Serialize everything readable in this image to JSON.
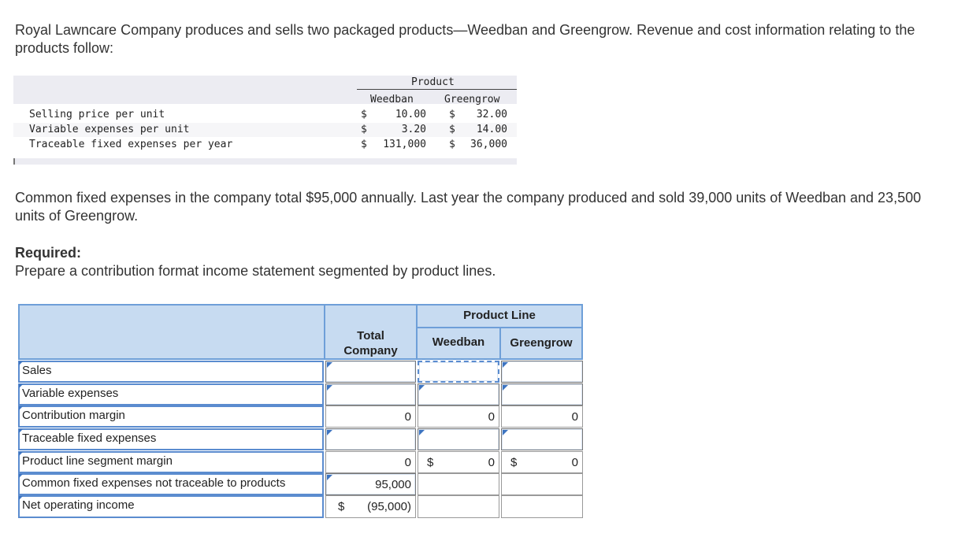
{
  "intro": "Royal Lawncare Company produces and sells two packaged products—Weedban and Greengrow. Revenue and cost information relating to the products follow:",
  "info_table": {
    "product_header": "Product",
    "columns": [
      "Weedban",
      "Greengrow"
    ],
    "rows": [
      {
        "label": "Selling price per unit",
        "w_cur": "$",
        "w_val": "10.00",
        "g_cur": "$",
        "g_val": "32.00"
      },
      {
        "label": "Variable expenses per unit",
        "w_cur": "$",
        "w_val": "3.20",
        "g_cur": "$",
        "g_val": "14.00"
      },
      {
        "label": "Traceable fixed expenses per year",
        "w_cur": "$",
        "w_val": "131,000",
        "g_cur": "$",
        "g_val": "36,000"
      }
    ]
  },
  "common_text": "Common fixed expenses in the company total $95,000 annually. Last year the company produced and sold 39,000 units of Weedban and 23,500 units of Greengrow.",
  "required_title": "Required:",
  "required_text": "Prepare a contribution format income statement segmented by product lines.",
  "grid": {
    "product_line": "Product Line",
    "total_line1": "Total",
    "total_line2": "Company",
    "weedban": "Weedban",
    "greengrow": "Greengrow",
    "rows": [
      {
        "label": "Sales"
      },
      {
        "label": "Variable expenses"
      },
      {
        "label": "Contribution margin",
        "total": "0",
        "weedban": "0",
        "greengrow": "0"
      },
      {
        "label": "Traceable fixed expenses"
      },
      {
        "label": "Product line segment margin",
        "total": "0",
        "w_cur": "$",
        "weedban": "0",
        "g_cur": "$",
        "greengrow": "0"
      },
      {
        "label": "Common fixed expenses not traceable to products",
        "total": "95,000"
      },
      {
        "label": "Net operating income",
        "t_cur": "$",
        "total": "(95,000)"
      }
    ]
  }
}
